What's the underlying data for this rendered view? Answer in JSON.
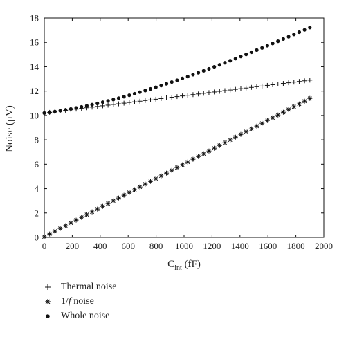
{
  "chart_data": {
    "type": "scatter",
    "title": "",
    "xlabel_main": "C",
    "xlabel_sub": "int",
    "xlabel_unit": " (fF)",
    "ylabel": "Noise (μV)",
    "xlim": [
      0,
      2000
    ],
    "ylim": [
      0,
      18
    ],
    "x_ticks": [
      "0",
      "200",
      "400",
      "600",
      "800",
      "1000",
      "1200",
      "1400",
      "1600",
      "1800",
      "2000"
    ],
    "y_ticks": [
      "0",
      "2",
      "4",
      "6",
      "8",
      "10",
      "12",
      "14",
      "16",
      "18"
    ],
    "grid": false,
    "legend_position": "bottom-left",
    "x_range": [
      0,
      1900
    ],
    "x_step": 38,
    "series": [
      {
        "name": "Thermal noise",
        "marker": "plus",
        "values_at_start": 10.2,
        "values_at_end": 12.9
      },
      {
        "name": "1/f noise",
        "marker": "asterisk",
        "values_at_start": 0.05,
        "values_at_end": 11.4
      },
      {
        "name": "Whole noise",
        "marker": "dot",
        "values_at_start": 10.25,
        "values_at_end": 17.15
      }
    ],
    "legend": [
      {
        "label": "Thermal noise",
        "marker": "plus"
      },
      {
        "label_prefix": "1/",
        "label_italic": "f",
        "label_suffix": " noise",
        "marker": "asterisk"
      },
      {
        "label": "Whole noise",
        "marker": "dot"
      }
    ]
  }
}
